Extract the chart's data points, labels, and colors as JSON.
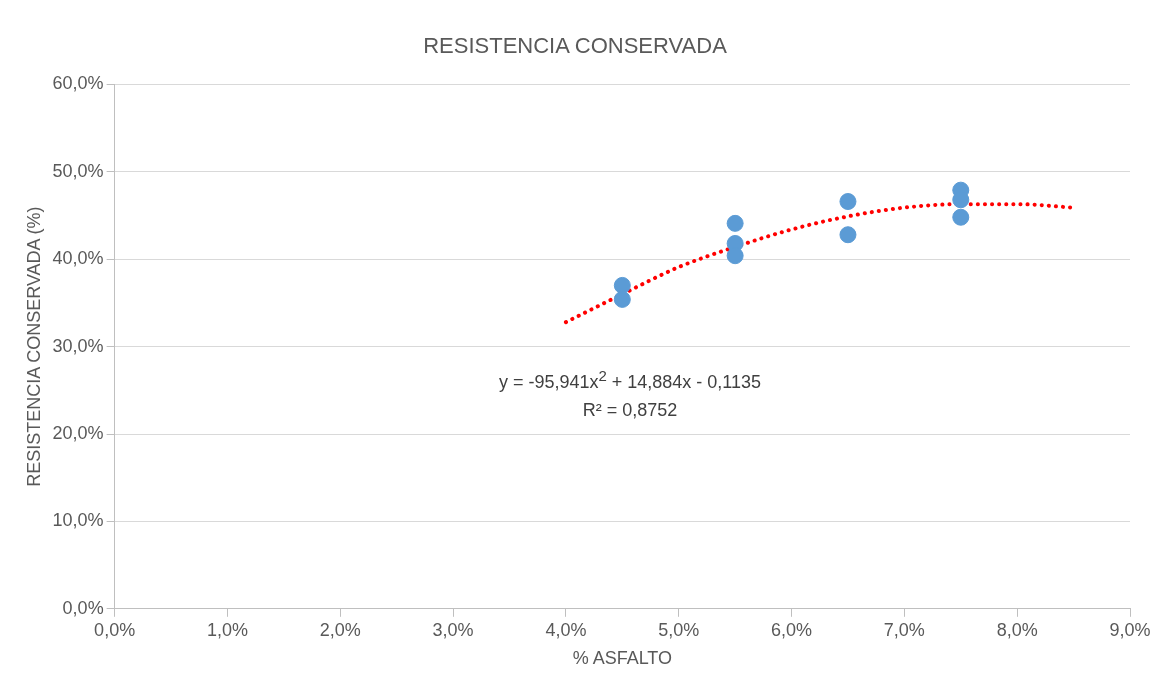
{
  "chart_data": {
    "type": "scatter",
    "title": "RESISTENCIA CONSERVADA",
    "xlabel": "% ASFALTO",
    "ylabel": "RESISTENCIA CONSERVADA (%)",
    "series": [
      {
        "color": "#5b9bd5",
        "marker": "circle",
        "x": [
          4.5,
          4.5,
          5.5,
          5.5,
          5.5,
          6.5,
          6.5,
          7.5,
          7.5,
          7.5
        ],
        "values": [
          37.0,
          35.4,
          44.1,
          41.8,
          40.4,
          46.6,
          42.8,
          47.9,
          46.8,
          44.8
        ]
      },
      {
        "type": "line",
        "color": "#ff0000",
        "marker": "none",
        "line_style": "dotted",
        "x": [
          4,
          4.5,
          5,
          5.5,
          6,
          6.5,
          7,
          7.5,
          8,
          8.5
        ],
        "values": [
          32.8,
          36.0,
          39.1,
          41.4,
          43.4,
          44.9,
          45.9,
          46.3,
          46.3,
          45.9
        ]
      }
    ],
    "xlim": [
      0,
      9
    ],
    "xticks": [
      {
        "value": 0,
        "label": "0,0%"
      },
      {
        "value": 1,
        "label": "1,0%"
      },
      {
        "value": 2,
        "label": "2,0%"
      },
      {
        "value": 3,
        "label": "3,0%"
      },
      {
        "value": 4,
        "label": "4,0%"
      },
      {
        "value": 5,
        "label": "5,0%"
      },
      {
        "value": 6,
        "label": "6,0%"
      },
      {
        "value": 7,
        "label": "7,0%"
      },
      {
        "value": 8,
        "label": "8,0%"
      },
      {
        "value": 9,
        "label": "9,0%"
      }
    ],
    "ylim": [
      0,
      60
    ],
    "yticks": [
      {
        "value": 0,
        "label": "0,0%"
      },
      {
        "value": 10,
        "label": "10,0%"
      },
      {
        "value": 20,
        "label": "20,0%"
      },
      {
        "value": 30,
        "label": "30,0%"
      },
      {
        "value": 40,
        "label": "40,0%"
      },
      {
        "value": 50,
        "label": "50,0%"
      },
      {
        "value": 60,
        "label": "60,0%"
      }
    ],
    "grid": "y",
    "legend": false,
    "annotations": [
      "y = -95,941x$^{2}$ + 14,884x - 0,1135",
      "R² = 0,8752"
    ]
  }
}
